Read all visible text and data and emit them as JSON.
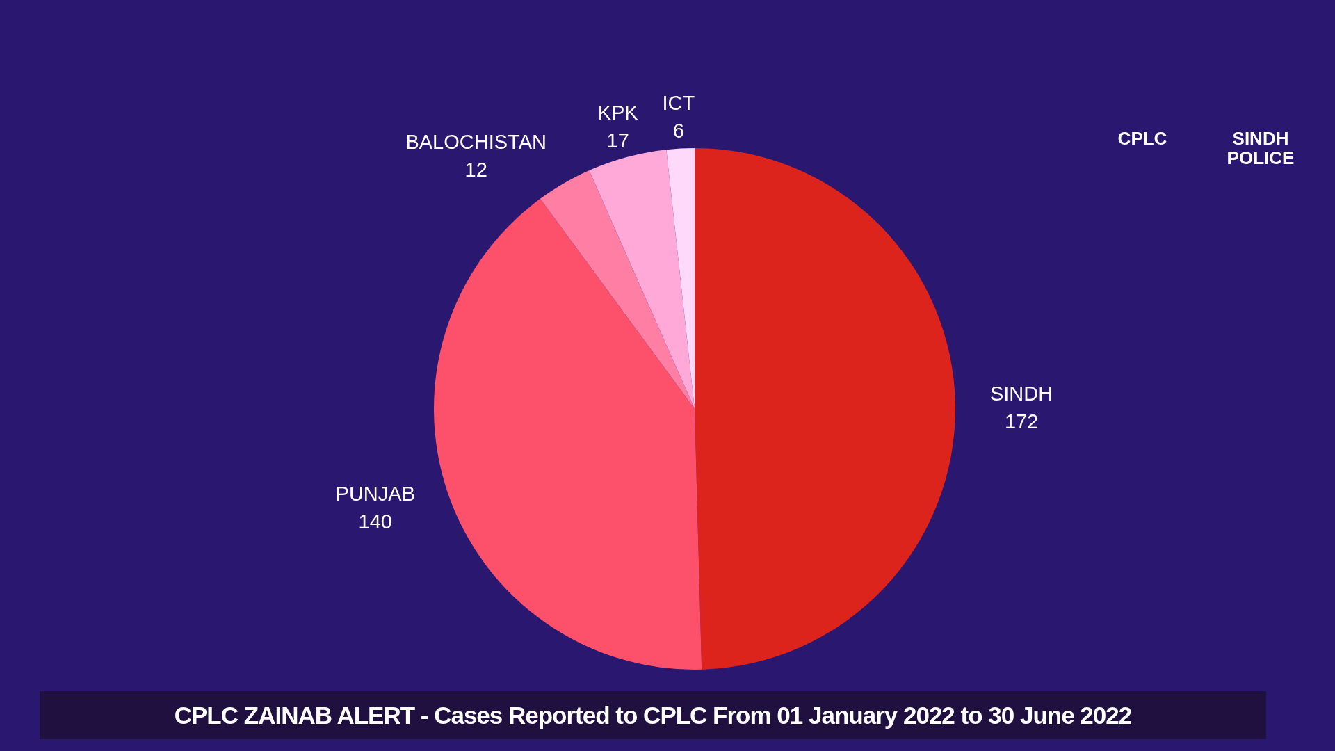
{
  "chart_data": {
    "type": "pie",
    "title": "CPLC ZAINAB ALERT - Cases Reported to CPLC From 01 January 2022 to 30 June 2022",
    "categories": [
      "SINDH",
      "PUNJAB",
      "BALOCHISTAN",
      "KPK",
      "ICT"
    ],
    "values": [
      172,
      140,
      12,
      17,
      6
    ],
    "colors": [
      "#dc241c",
      "#fd506a",
      "#ff7ea3",
      "#ffa9d9",
      "#ffd9fa"
    ],
    "data_labels": true,
    "annotations": [
      "CPLC",
      "SINDH POLICE"
    ]
  }
}
